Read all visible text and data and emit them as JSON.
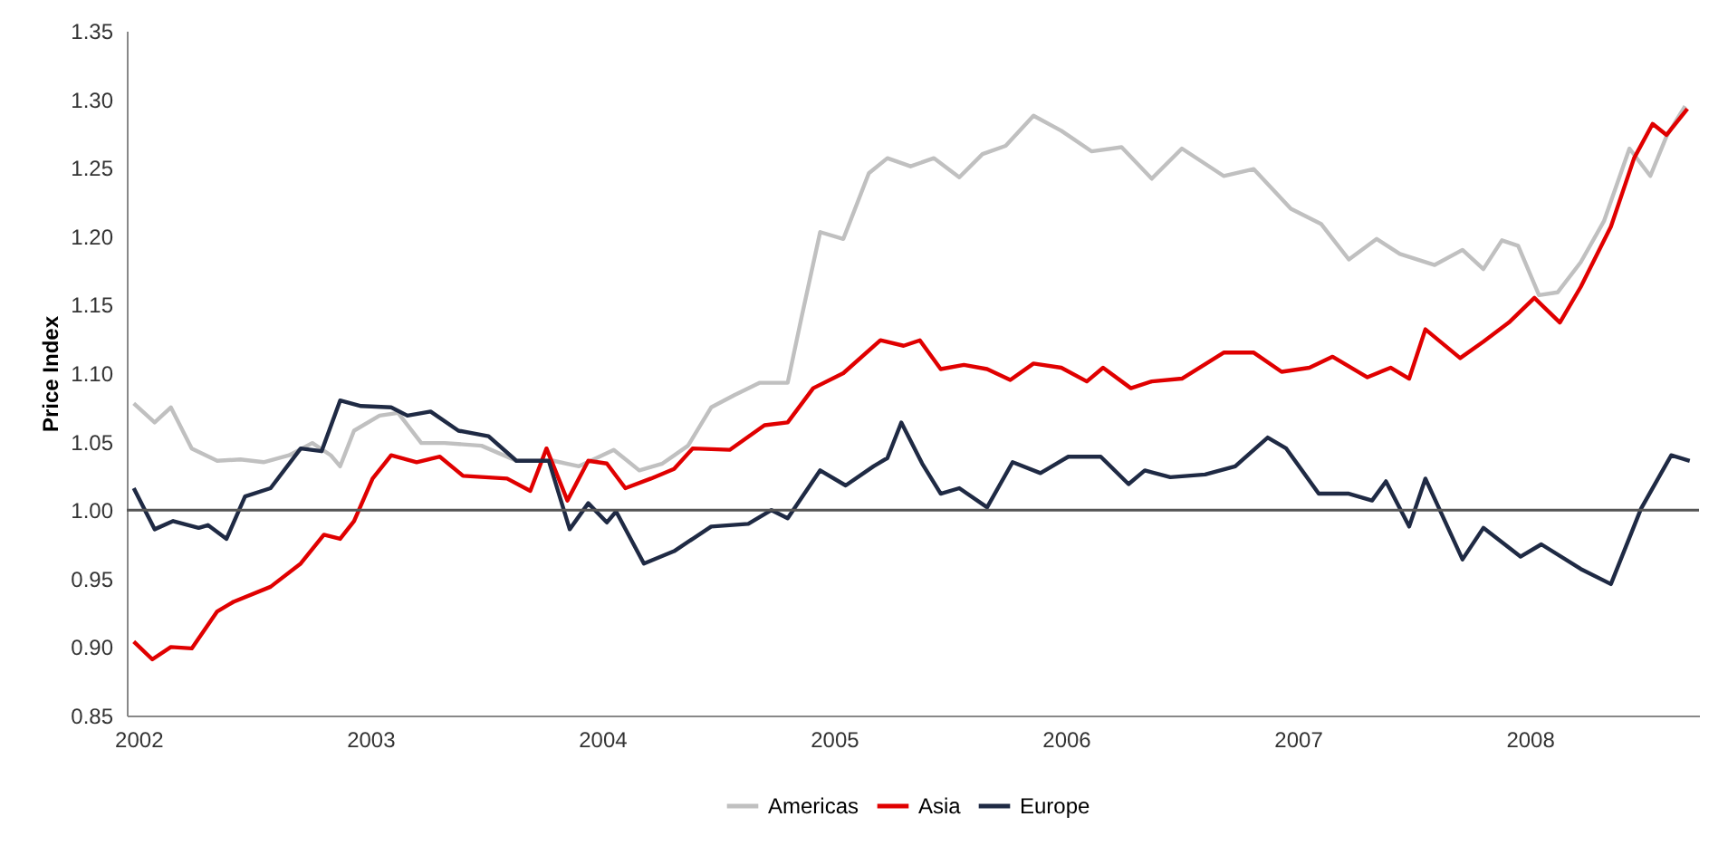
{
  "chart_data": {
    "type": "line",
    "ylabel": "Price Index",
    "xlim": [
      2001.95,
      2008.73
    ],
    "xticks": [
      2002,
      2003,
      2004,
      2005,
      2006,
      2007,
      2008
    ],
    "ylim": [
      0.85,
      1.35
    ],
    "yticks": [
      0.85,
      {
        "value": 0.9,
        "label": "0.90"
      },
      0.95,
      {
        "value": 1.0,
        "label": "1.00"
      },
      1.05,
      {
        "value": 1.1,
        "label": "1.10"
      },
      1.15,
      {
        "value": 1.2,
        "label": "1.20"
      },
      1.25,
      {
        "value": 1.3,
        "label": "1.30"
      },
      1.35
    ],
    "legend": "bottom",
    "ref_lines": [
      {
        "axis": "y",
        "value": 1.0,
        "color": "#555555"
      }
    ],
    "series": [
      {
        "name": "Americas",
        "color": "#c0c0c0",
        "x": [
          2001.98,
          2002.07,
          2002.14,
          2002.23,
          2002.34,
          2002.44,
          2002.54,
          2002.65,
          2002.75,
          2002.83,
          2002.87,
          2002.93,
          2003.04,
          2003.12,
          2003.22,
          2003.32,
          2003.48,
          2003.63,
          2003.79,
          2003.9,
          2004.05,
          2004.16,
          2004.26,
          2004.37,
          2004.47,
          2004.57,
          2004.68,
          2004.8,
          2004.86,
          2004.94,
          2005.04,
          2005.15,
          2005.23,
          2005.33,
          2005.43,
          2005.54,
          2005.64,
          2005.74,
          2005.86,
          2005.98,
          2006.11,
          2006.24,
          2006.37,
          2006.5,
          2006.68,
          2006.81,
          2006.97,
          2007.1,
          2007.22,
          2007.34,
          2007.44,
          2007.59,
          2007.71,
          2007.8,
          2007.88,
          2007.95,
          2008.04,
          2008.12,
          2008.22,
          2008.32,
          2008.43,
          2008.52,
          2008.59,
          2008.67
        ],
        "values": [
          1.078,
          1.064,
          1.075,
          1.045,
          1.036,
          1.037,
          1.035,
          1.04,
          1.049,
          1.04,
          1.032,
          1.058,
          1.069,
          1.071,
          1.049,
          1.049,
          1.047,
          1.036,
          1.036,
          1.032,
          1.044,
          1.029,
          1.034,
          1.047,
          1.075,
          1.084,
          1.093,
          1.093,
          1.141,
          1.203,
          1.198,
          1.246,
          1.257,
          1.251,
          1.257,
          1.243,
          1.26,
          1.266,
          1.288,
          1.277,
          1.262,
          1.265,
          1.242,
          1.264,
          1.244,
          1.249,
          1.22,
          1.209,
          1.183,
          1.198,
          1.187,
          1.179,
          1.19,
          1.176,
          1.197,
          1.193,
          1.157,
          1.159,
          1.181,
          1.211,
          1.264,
          1.244,
          1.273,
          1.295
        ]
      },
      {
        "name": "Asia",
        "color": "#e00000",
        "x": [
          2001.98,
          2002.06,
          2002.14,
          2002.23,
          2002.34,
          2002.41,
          2002.57,
          2002.7,
          2002.8,
          2002.87,
          2002.93,
          2003.01,
          2003.09,
          2003.2,
          2003.3,
          2003.4,
          2003.59,
          2003.69,
          2003.76,
          2003.85,
          2003.94,
          2004.02,
          2004.1,
          2004.21,
          2004.31,
          2004.39,
          2004.55,
          2004.7,
          2004.8,
          2004.91,
          2005.04,
          2005.2,
          2005.3,
          2005.37,
          2005.46,
          2005.56,
          2005.66,
          2005.76,
          2005.86,
          2005.98,
          2006.09,
          2006.16,
          2006.28,
          2006.37,
          2006.5,
          2006.68,
          2006.81,
          2006.93,
          2007.05,
          2007.15,
          2007.3,
          2007.4,
          2007.48,
          2007.55,
          2007.7,
          2007.8,
          2007.91,
          2008.02,
          2008.13,
          2008.22,
          2008.35,
          2008.45,
          2008.53,
          2008.59,
          2008.68
        ],
        "values": [
          0.904,
          0.891,
          0.9,
          0.899,
          0.926,
          0.933,
          0.944,
          0.961,
          0.982,
          0.979,
          0.992,
          1.023,
          1.04,
          1.035,
          1.039,
          1.025,
          1.023,
          1.014,
          1.045,
          1.007,
          1.036,
          1.034,
          1.016,
          1.023,
          1.03,
          1.045,
          1.044,
          1.062,
          1.064,
          1.089,
          1.1,
          1.124,
          1.12,
          1.124,
          1.103,
          1.106,
          1.103,
          1.095,
          1.107,
          1.104,
          1.094,
          1.104,
          1.089,
          1.094,
          1.096,
          1.115,
          1.115,
          1.101,
          1.104,
          1.112,
          1.097,
          1.104,
          1.096,
          1.132,
          1.111,
          1.123,
          1.137,
          1.155,
          1.137,
          1.163,
          1.207,
          1.257,
          1.282,
          1.274,
          1.293
        ]
      },
      {
        "name": "Europe",
        "color": "#1f2a44",
        "x": [
          2001.98,
          2002.07,
          2002.15,
          2002.26,
          2002.3,
          2002.38,
          2002.46,
          2002.57,
          2002.7,
          2002.79,
          2002.87,
          2002.96,
          2003.09,
          2003.16,
          2003.26,
          2003.38,
          2003.51,
          2003.63,
          2003.77,
          2003.86,
          2003.94,
          2004.02,
          2004.06,
          2004.18,
          2004.31,
          2004.47,
          2004.63,
          2004.73,
          2004.8,
          2004.94,
          2005.05,
          2005.17,
          2005.23,
          2005.29,
          2005.38,
          2005.46,
          2005.54,
          2005.66,
          2005.77,
          2005.89,
          2006.01,
          2006.15,
          2006.27,
          2006.34,
          2006.45,
          2006.6,
          2006.73,
          2006.87,
          2006.95,
          2007.09,
          2007.22,
          2007.32,
          2007.38,
          2007.48,
          2007.55,
          2007.71,
          2007.8,
          2007.96,
          2008.05,
          2008.22,
          2008.35,
          2008.48,
          2008.61,
          2008.69
        ],
        "values": [
          1.016,
          0.986,
          0.992,
          0.987,
          0.989,
          0.979,
          1.01,
          1.016,
          1.045,
          1.043,
          1.08,
          1.076,
          1.075,
          1.069,
          1.072,
          1.058,
          1.054,
          1.036,
          1.036,
          0.986,
          1.005,
          0.991,
          0.999,
          0.961,
          0.97,
          0.988,
          0.99,
          1.0,
          0.994,
          1.029,
          1.018,
          1.032,
          1.038,
          1.064,
          1.034,
          1.012,
          1.016,
          1.002,
          1.035,
          1.027,
          1.039,
          1.039,
          1.019,
          1.029,
          1.024,
          1.026,
          1.032,
          1.053,
          1.045,
          1.012,
          1.012,
          1.007,
          1.021,
          0.988,
          1.023,
          0.964,
          0.987,
          0.966,
          0.975,
          0.957,
          0.946,
          1.001,
          1.04,
          1.036
        ]
      }
    ]
  }
}
